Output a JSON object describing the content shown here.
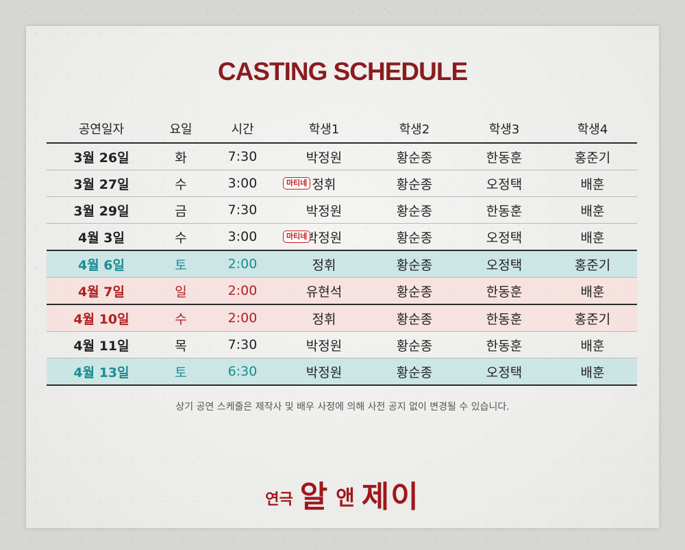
{
  "title": "CASTING SCHEDULE",
  "columns": [
    "공연일자",
    "요일",
    "시간",
    "학생1",
    "학생2",
    "학생3",
    "학생4"
  ],
  "rows": [
    {
      "date": "3월 26일",
      "day": "화",
      "time": "7:30",
      "badge": "",
      "s1": "박정원",
      "s2": "황순종",
      "s3": "한동훈",
      "s4": "홍준기"
    },
    {
      "date": "3월 27일",
      "day": "수",
      "time": "3:00",
      "badge": "마티네",
      "s1": "정휘",
      "s2": "황순종",
      "s3": "오정택",
      "s4": "배훈"
    },
    {
      "date": "3월 29일",
      "day": "금",
      "time": "7:30",
      "badge": "",
      "s1": "박정원",
      "s2": "황순종",
      "s3": "한동훈",
      "s4": "배훈"
    },
    {
      "date": "4월 3일",
      "day": "수",
      "time": "3:00",
      "badge": "마티네",
      "s1": "박정원",
      "s2": "황순종",
      "s3": "오정택",
      "s4": "배훈"
    },
    {
      "date": "4월 6일",
      "day": "토",
      "time": "2:00",
      "badge": "",
      "s1": "정휘",
      "s2": "황순종",
      "s3": "오정택",
      "s4": "홍준기"
    },
    {
      "date": "4월 7일",
      "day": "일",
      "time": "2:00",
      "badge": "",
      "s1": "유현석",
      "s2": "황순종",
      "s3": "한동훈",
      "s4": "배훈"
    },
    {
      "date": "4월 10일",
      "day": "수",
      "time": "2:00",
      "badge": "",
      "s1": "정휘",
      "s2": "황순종",
      "s3": "한동훈",
      "s4": "홍준기"
    },
    {
      "date": "4월 11일",
      "day": "목",
      "time": "7:30",
      "badge": "",
      "s1": "박정원",
      "s2": "황순종",
      "s3": "한동훈",
      "s4": "배훈"
    },
    {
      "date": "4월 13일",
      "day": "토",
      "time": "6:30",
      "badge": "",
      "s1": "박정원",
      "s2": "황순종",
      "s3": "오정택",
      "s4": "배훈"
    }
  ],
  "note": "상기 공연 스케줄은 제작사 및 배우 사정에 의해 사전 공지 없이 변경될 수 있습니다.",
  "logo": {
    "prefix": "연극",
    "word1": "알",
    "amp": "앤",
    "word2": "제이"
  },
  "colors": {
    "title": "#8a1c1e",
    "saturday": "#1a8b93",
    "sunday": "#b02020",
    "badge": "#c01e1e"
  }
}
